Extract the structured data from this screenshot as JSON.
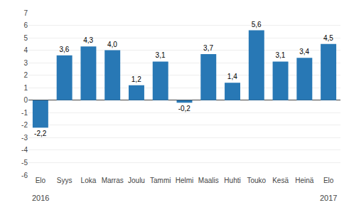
{
  "chart_data": {
    "type": "bar",
    "categories": [
      "Elo",
      "Syys",
      "Loka",
      "Marras",
      "Joulu",
      "Tammi",
      "Helmi",
      "Maalis",
      "Huhti",
      "Touko",
      "Kesä",
      "Heinä",
      "Elo"
    ],
    "values": [
      -2.2,
      3.6,
      4.3,
      4.0,
      1.2,
      3.1,
      -0.2,
      3.7,
      1.4,
      5.6,
      3.1,
      3.4,
      4.5
    ],
    "value_labels": [
      "-2,2",
      "3,6",
      "4,3",
      "4,0",
      "1,2",
      "3,1",
      "-0,2",
      "3,7",
      "1,4",
      "5,6",
      "3,1",
      "3,4",
      "4,5"
    ],
    "data_labels": true,
    "color": "#2878b5",
    "ylim": [
      -6,
      7
    ],
    "yticks": [
      -6,
      -5,
      -4,
      -3,
      -2,
      -1,
      0,
      1,
      2,
      3,
      4,
      5,
      6,
      7
    ],
    "grid": true,
    "annotations": [
      {
        "text": "2016",
        "index": 0
      },
      {
        "text": "2017",
        "index": 12
      }
    ]
  }
}
